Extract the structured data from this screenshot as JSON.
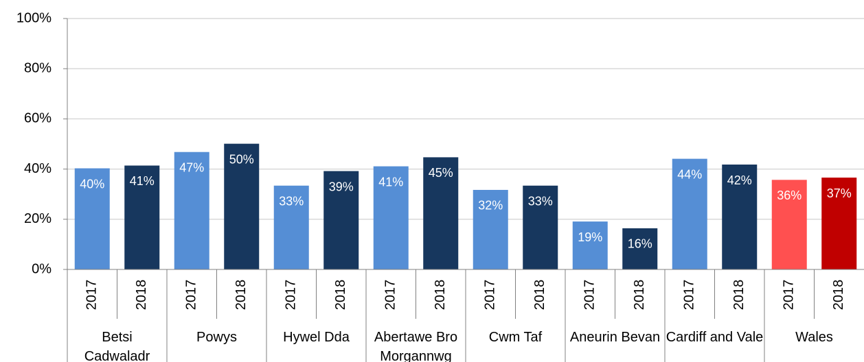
{
  "chart_data": {
    "type": "bar",
    "categories": [
      "Betsi Cadwaladr",
      "Powys",
      "Hywel Dda",
      "Abertawe Bro Morgannwg",
      "Cwm Taf",
      "Aneurin Bevan",
      "Cardiff and Vale",
      "Wales"
    ],
    "series": [
      {
        "name": "2017",
        "colors": [
          "#558ed5",
          "#558ed5",
          "#558ed5",
          "#558ed5",
          "#558ed5",
          "#558ed5",
          "#558ed5",
          "#ff5050"
        ],
        "values": [
          40.3,
          46.8,
          33.4,
          41.1,
          31.7,
          19.1,
          44.1,
          35.7
        ],
        "value_labels": [
          "40%",
          "47%",
          "33%",
          "41%",
          "32%",
          "19%",
          "44%",
          "36%"
        ]
      },
      {
        "name": "2018",
        "colors": [
          "#17375e",
          "#17375e",
          "#17375e",
          "#17375e",
          "#17375e",
          "#17375e",
          "#17375e",
          "#c00000"
        ],
        "values": [
          41.4,
          50.1,
          39.2,
          44.7,
          33.4,
          16.4,
          41.8,
          36.6
        ],
        "value_labels": [
          "41%",
          "50%",
          "39%",
          "45%",
          "33%",
          "16%",
          "42%",
          "37%"
        ]
      }
    ],
    "ylim": [
      0,
      100
    ],
    "yticks": [
      {
        "value": 0,
        "label": "0%"
      },
      {
        "value": 20,
        "label": "20%"
      },
      {
        "value": 40,
        "label": "40%"
      },
      {
        "value": 60,
        "label": "60%"
      },
      {
        "value": 80,
        "label": "80%"
      },
      {
        "value": 100,
        "label": "100%"
      }
    ],
    "grid": true
  }
}
